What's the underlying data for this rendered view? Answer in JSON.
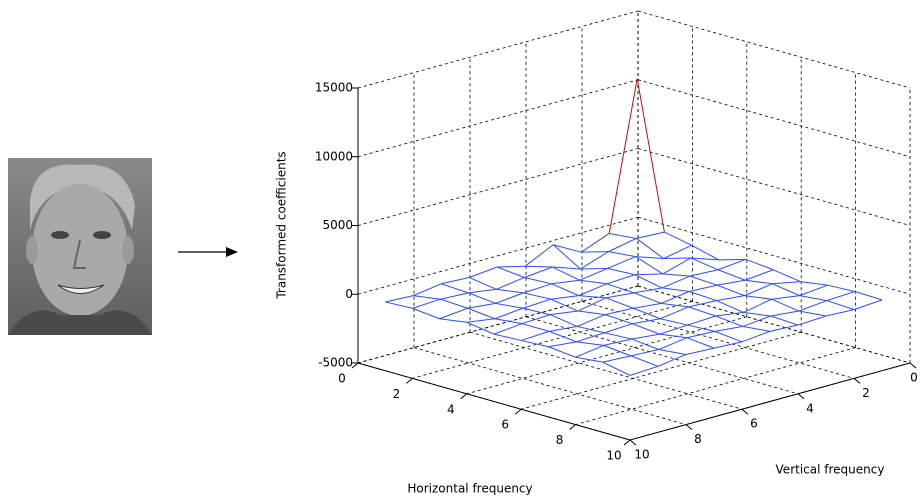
{
  "chart_data": {
    "type": "mesh",
    "x_label": "Horizontal frequency",
    "y_label": "Vertical frequency",
    "z_label": "Transformed coefficients",
    "x": [
      1,
      2,
      3,
      4,
      5,
      6,
      7,
      8,
      9,
      10
    ],
    "y": [
      1,
      2,
      3,
      4,
      5,
      6,
      7,
      8,
      9,
      10
    ],
    "z": [
      [
        11200,
        600,
        200,
        -300,
        300,
        100,
        -200,
        100,
        200,
        150
      ],
      [
        500,
        700,
        -200,
        400,
        100,
        -100,
        200,
        -100,
        100,
        0
      ],
      [
        -300,
        300,
        500,
        -200,
        200,
        100,
        -100,
        200,
        -100,
        100
      ],
      [
        800,
        -400,
        200,
        300,
        -100,
        200,
        100,
        -200,
        100,
        0
      ],
      [
        -200,
        300,
        -100,
        200,
        100,
        -100,
        200,
        100,
        -100,
        100
      ],
      [
        300,
        100,
        200,
        -100,
        300,
        100,
        -100,
        0,
        100,
        -100
      ],
      [
        100,
        -200,
        100,
        200,
        -100,
        200,
        100,
        -100,
        200,
        0
      ],
      [
        200,
        100,
        -100,
        100,
        200,
        -100,
        0,
        100,
        -100,
        100
      ],
      [
        -100,
        200,
        100,
        -100,
        100,
        100,
        -100,
        200,
        0,
        -200
      ],
      [
        0,
        100,
        -100,
        200,
        -100,
        0,
        100,
        -100,
        100,
        -300
      ]
    ],
    "xlim": [
      0,
      10
    ],
    "ylim": [
      0,
      10
    ],
    "zlim": [
      -5000,
      15000
    ],
    "xticks": [
      0,
      2,
      4,
      6,
      8,
      10
    ],
    "yticks": [
      0,
      2,
      4,
      6,
      8,
      10
    ],
    "zticks": [
      -5000,
      0,
      5000,
      10000,
      15000
    ],
    "color": "#2d4dff",
    "peak_color": "#b01515",
    "grid": true
  }
}
